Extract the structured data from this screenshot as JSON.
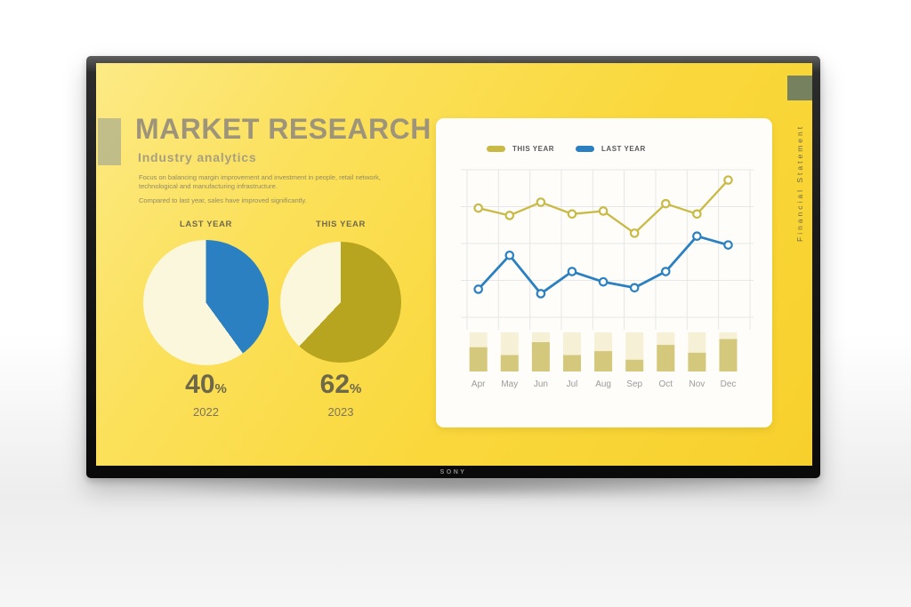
{
  "device": {
    "brand_label": "SONY"
  },
  "slide": {
    "title": "MARKET RESEARCH",
    "subtitle": "Industry analytics",
    "paragraph1": "Focus on balancing margin improvement and investment in people, retail network, technological and manufacturing infrastructure.",
    "paragraph2": "Compared to last year, sales have improved significantly.",
    "side_label": "Financial Statement",
    "decor": {
      "left_color": "rgba(154,162,146,0.6)",
      "right_color": "#76815f"
    },
    "pies": [
      {
        "label": "LAST YEAR",
        "percent": 40,
        "display": "40",
        "suffix": "%",
        "year": "2022",
        "slice_color": "#2b80c2",
        "rest_color": "#fbf7dc"
      },
      {
        "label": "THIS YEAR",
        "percent": 62,
        "display": "62",
        "suffix": "%",
        "year": "2023",
        "slice_color": "#b8a51f",
        "rest_color": "#fbf7dc"
      }
    ]
  },
  "chart_data": {
    "type": "line",
    "title": "",
    "xlabel": "",
    "ylabel": "",
    "categories": [
      "Apr",
      "May",
      "Jun",
      "Jul",
      "Aug",
      "Sep",
      "Oct",
      "Nov",
      "Dec"
    ],
    "series": [
      {
        "name": "THIS YEAR",
        "color": "#c9ba45",
        "values": [
          74,
          69,
          78,
          70,
          72,
          57,
          77,
          70,
          93
        ]
      },
      {
        "name": "LAST YEAR",
        "color": "#2a80c0",
        "values": [
          19,
          42,
          16,
          31,
          24,
          20,
          31,
          55,
          49
        ]
      }
    ],
    "bars": {
      "note": "monthly mini stacked bars under line chart, percent filled",
      "values": [
        62,
        42,
        75,
        42,
        52,
        30,
        68,
        48,
        83
      ],
      "bg_color": "#f6f1d6",
      "fill_color": "#d4c87d"
    },
    "ylim": [
      0,
      100
    ],
    "grid": true,
    "legend_position": "top"
  }
}
